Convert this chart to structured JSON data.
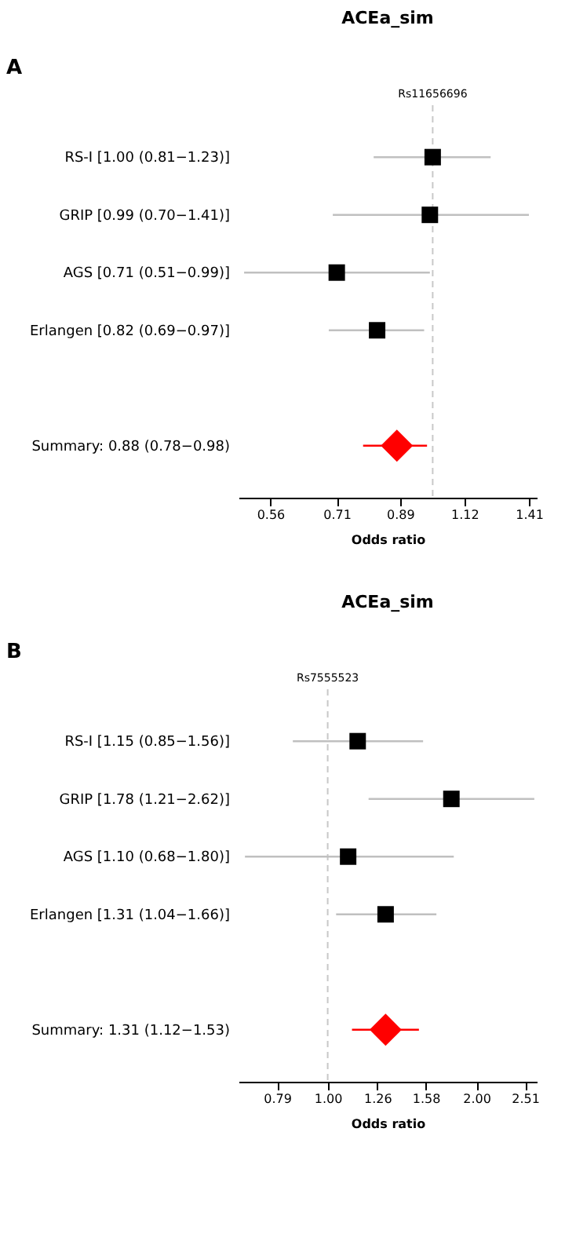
{
  "chart_data": [
    {
      "type": "scatter",
      "orientation": "horizontal",
      "title": "ACEa_sim",
      "xlabel": "Odds ratio",
      "annotations": [
        "A"
      ],
      "categories": [
        "RS-I [1.00 (0.81−1.23)]",
        "GRIP [0.99 (0.70−1.41)]",
        "AGS [0.71 (0.51−0.99)]",
        "Erlangen [0.82 (0.69−0.97)]",
        null,
        "Summary: 0.88 (0.78−0.98)"
      ],
      "log": "x",
      "xlim": [
        0.5,
        1.45
      ],
      "xticks": [
        0.56,
        0.71,
        0.89,
        1.12,
        1.41
      ],
      "grid": false,
      "legend": false,
      "ref_lines": [
        {
          "axis": "x",
          "value": 1,
          "label": "Rs11656696",
          "color": "#c8c8c8",
          "line_style": "dashed"
        }
      ],
      "series": [
        {
          "color": "#000000",
          "marker": "square",
          "values": [
            1.0,
            0.99,
            0.71,
            0.82,
            null,
            null
          ],
          "errors": [
            [
              0.81,
              1.23
            ],
            [
              0.7,
              1.41
            ],
            [
              0.51,
              0.99
            ],
            [
              0.69,
              0.97
            ],
            null,
            null
          ]
        },
        {
          "color": "#ff0000",
          "marker": "diamond",
          "values": [
            null,
            null,
            null,
            null,
            null,
            0.88
          ],
          "errors": [
            null,
            null,
            null,
            null,
            null,
            [
              0.78,
              0.98
            ]
          ]
        }
      ]
    },
    {
      "type": "scatter",
      "orientation": "horizontal",
      "title": "ACEa_sim",
      "xlabel": "Odds ratio",
      "annotations": [
        "B"
      ],
      "categories": [
        "RS-I [1.15 (0.85−1.56)]",
        "GRIP [1.78 (1.21−2.62)]",
        "AGS [1.10 (0.68−1.80)]",
        "Erlangen [1.31 (1.04−1.66)]",
        null,
        "Summary: 1.31 (1.12−1.53)"
      ],
      "log": "x",
      "xlim": [
        0.66,
        2.65
      ],
      "xticks": [
        0.79,
        {
          "value": 1,
          "label": "1.00"
        },
        1.26,
        1.58,
        {
          "value": 2,
          "label": "2.00"
        },
        2.51
      ],
      "grid": false,
      "legend": false,
      "ref_lines": [
        {
          "axis": "x",
          "value": 1,
          "label": "Rs7555523",
          "color": "#c8c8c8",
          "line_style": "dashed"
        }
      ],
      "series": [
        {
          "color": "#000000",
          "marker": "square",
          "values": [
            1.15,
            1.78,
            1.1,
            1.31,
            null,
            null
          ],
          "errors": [
            [
              0.85,
              1.56
            ],
            [
              1.21,
              2.62
            ],
            [
              0.68,
              1.8
            ],
            [
              1.04,
              1.66
            ],
            null,
            null
          ]
        },
        {
          "color": "#ff0000",
          "marker": "diamond",
          "values": [
            null,
            null,
            null,
            null,
            null,
            1.31
          ],
          "errors": [
            null,
            null,
            null,
            null,
            null,
            [
              1.12,
              1.53
            ]
          ]
        }
      ]
    }
  ]
}
